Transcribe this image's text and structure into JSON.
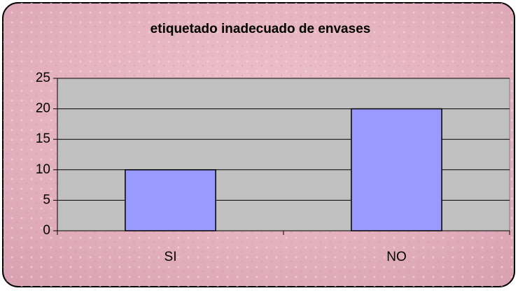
{
  "chart_data": {
    "type": "bar",
    "title": "etiquetado inadecuado de envases",
    "categories": [
      "SI",
      "NO"
    ],
    "values": [
      10,
      20
    ],
    "color": "#9999ff",
    "ylim": [
      0,
      25
    ],
    "yticks": [
      0,
      5,
      10,
      15,
      20,
      25
    ],
    "grid": true
  }
}
